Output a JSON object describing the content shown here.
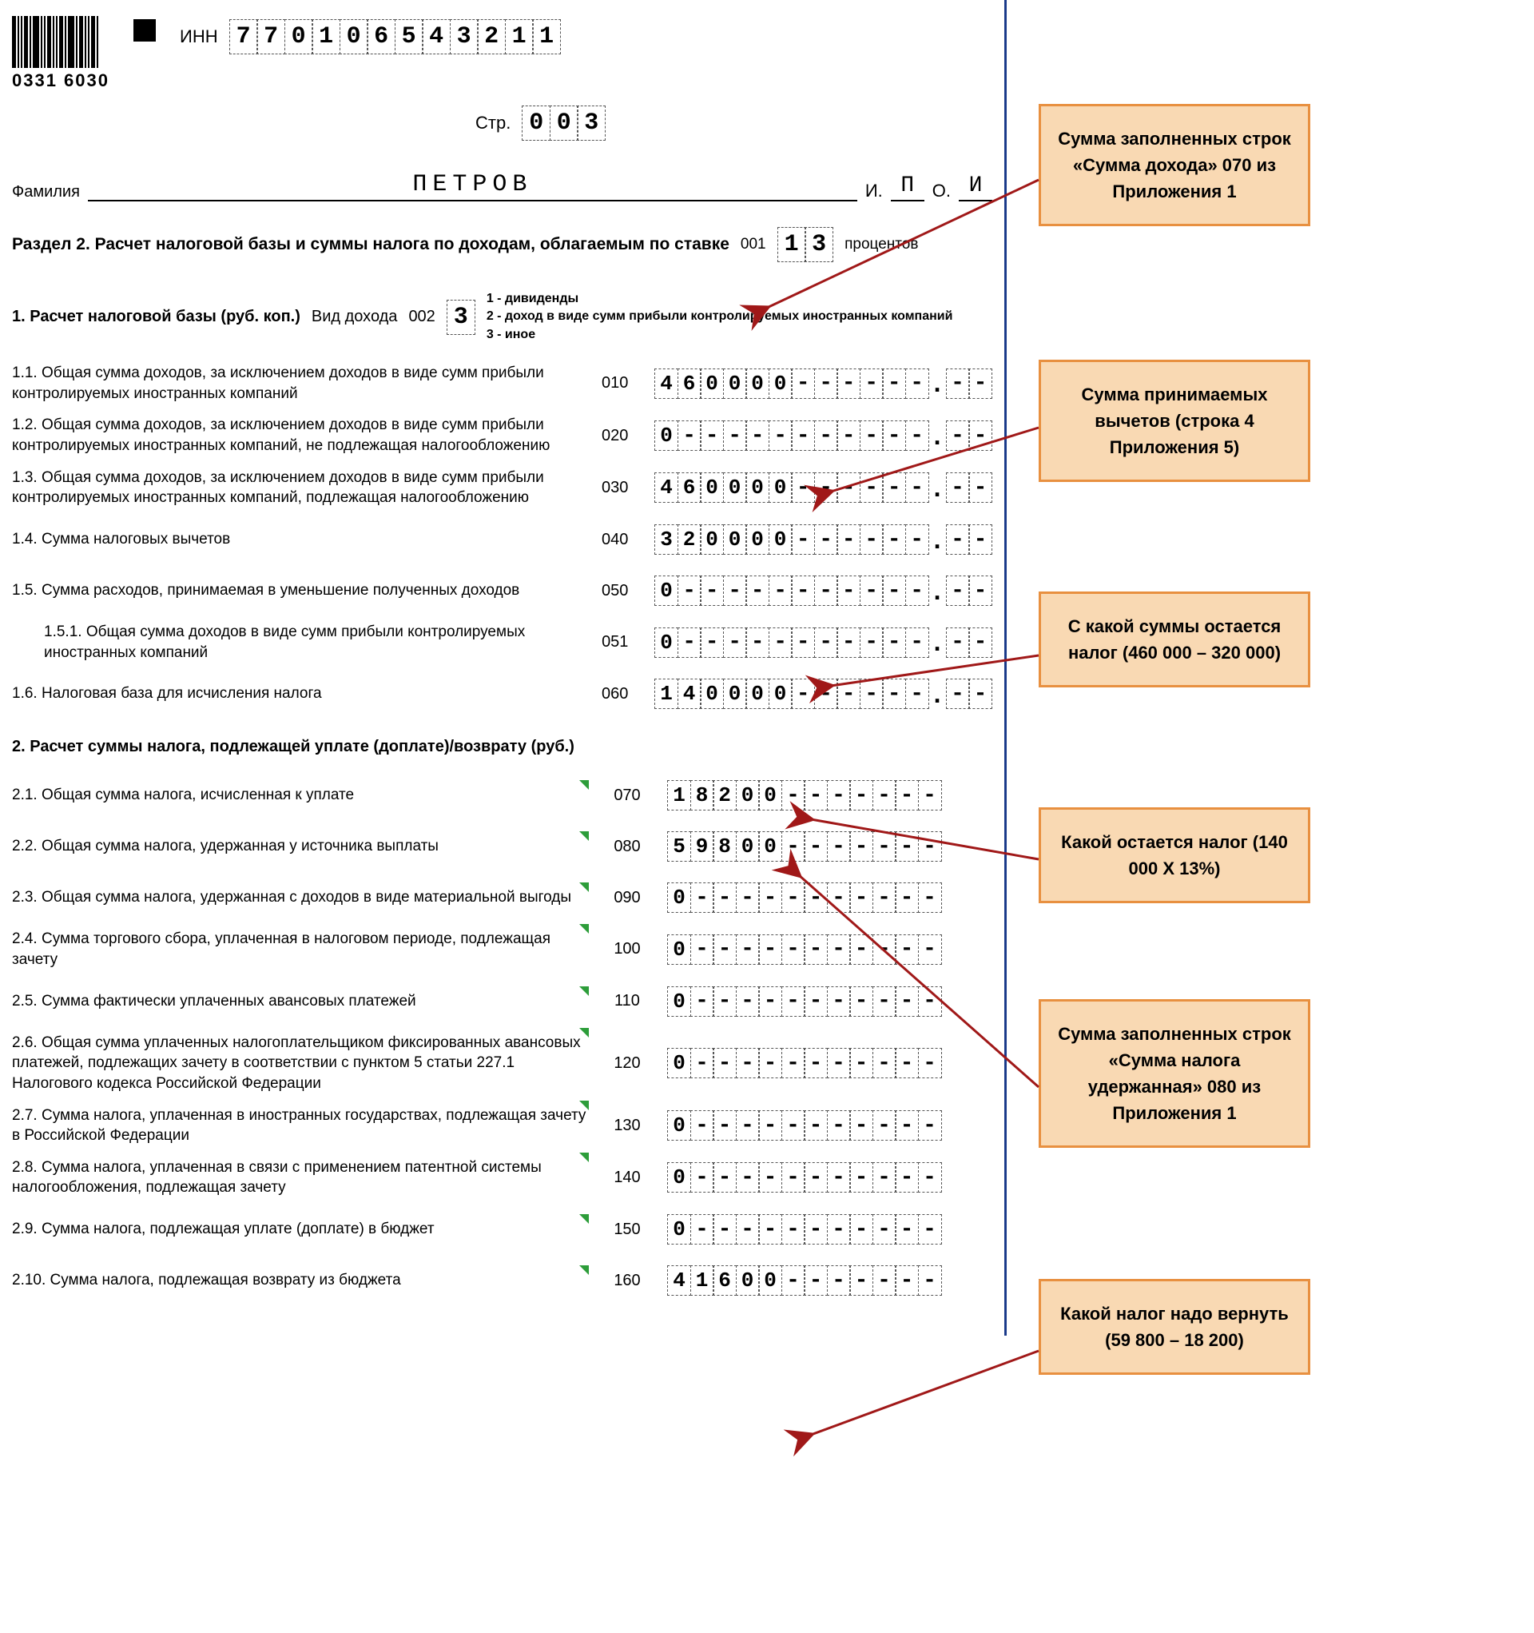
{
  "header": {
    "barcode_text": "0331 6030",
    "inn_label": "ИНН",
    "inn": [
      "7",
      "7",
      "0",
      "1",
      "0",
      "6",
      "5",
      "4",
      "3",
      "2",
      "1",
      "1"
    ],
    "page_label": "Стр.",
    "page": [
      "0",
      "0",
      "3"
    ]
  },
  "name": {
    "surname_label": "Фамилия",
    "surname": "ПЕТРОВ",
    "i_label": "И.",
    "i": "П",
    "o_label": "О.",
    "o": "И"
  },
  "section2": {
    "title": "Раздел 2. Расчет налоговой базы и суммы налога по доходам, облагаемым по ставке",
    "code": "001",
    "rate": [
      "1",
      "3"
    ],
    "rate_suffix": "процентов"
  },
  "sub1": {
    "title": "1. Расчет налоговой базы (руб. коп.)",
    "income_type_label": "Вид дохода",
    "income_type_code": "002",
    "income_type": [
      "3"
    ],
    "notes": [
      "1 - дивиденды",
      "2 - доход в виде сумм прибыли контролируемых иностранных компаний",
      "3 - иное"
    ]
  },
  "sub2": {
    "title": "2. Расчет суммы налога, подлежащей уплате (доплате)/возврату (руб.)"
  },
  "lines": [
    {
      "num": "1.1.",
      "text": "Общая сумма доходов, за исключением доходов в виде сумм прибыли контролируемых иностранных компаний",
      "code": "010",
      "int": [
        "4",
        "6",
        "0",
        "0",
        "0",
        "0",
        "-",
        "-",
        "-",
        "-",
        "-",
        "-"
      ],
      "dec": [
        "-",
        "-"
      ],
      "tri": false
    },
    {
      "num": "1.2.",
      "text": "Общая сумма доходов, за исключением доходов в виде сумм прибыли контролируемых иностранных компаний, не подлежащая налогообложению",
      "code": "020",
      "int": [
        "0",
        "-",
        "-",
        "-",
        "-",
        "-",
        "-",
        "-",
        "-",
        "-",
        "-",
        "-"
      ],
      "dec": [
        "-",
        "-"
      ],
      "tri": false
    },
    {
      "num": "1.3.",
      "text": "Общая сумма доходов, за исключением доходов в виде сумм прибыли контролируемых иностранных компаний, подлежащая налогообложению",
      "code": "030",
      "int": [
        "4",
        "6",
        "0",
        "0",
        "0",
        "0",
        "-",
        "-",
        "-",
        "-",
        "-",
        "-"
      ],
      "dec": [
        "-",
        "-"
      ],
      "tri": false
    },
    {
      "num": "1.4.",
      "text": "Сумма налоговых вычетов",
      "code": "040",
      "int": [
        "3",
        "2",
        "0",
        "0",
        "0",
        "0",
        "-",
        "-",
        "-",
        "-",
        "-",
        "-"
      ],
      "dec": [
        "-",
        "-"
      ],
      "tri": false
    },
    {
      "num": "1.5.",
      "text": "Сумма расходов, принимаемая в уменьшение полученных доходов",
      "code": "050",
      "int": [
        "0",
        "-",
        "-",
        "-",
        "-",
        "-",
        "-",
        "-",
        "-",
        "-",
        "-",
        "-"
      ],
      "dec": [
        "-",
        "-"
      ],
      "tri": false
    },
    {
      "num": "1.5.1.",
      "text": "Общая сумма доходов в виде сумм прибыли контролируемых иностранных компаний",
      "code": "051",
      "int": [
        "0",
        "-",
        "-",
        "-",
        "-",
        "-",
        "-",
        "-",
        "-",
        "-",
        "-",
        "-"
      ],
      "dec": [
        "-",
        "-"
      ],
      "tri": false,
      "indent": true
    },
    {
      "num": "1.6.",
      "text": "Налоговая база для исчисления налога",
      "code": "060",
      "int": [
        "1",
        "4",
        "0",
        "0",
        "0",
        "0",
        "-",
        "-",
        "-",
        "-",
        "-",
        "-"
      ],
      "dec": [
        "-",
        "-"
      ],
      "tri": false
    },
    {
      "num": "2.1.",
      "text": "Общая сумма налога, исчисленная к уплате",
      "code": "070",
      "int": [
        "1",
        "8",
        "2",
        "0",
        "0",
        "-",
        "-",
        "-",
        "-",
        "-",
        "-",
        "-"
      ],
      "dec": null,
      "tri": true
    },
    {
      "num": "2.2.",
      "text": "Общая сумма налога, удержанная у источника выплаты",
      "code": "080",
      "int": [
        "5",
        "9",
        "8",
        "0",
        "0",
        "-",
        "-",
        "-",
        "-",
        "-",
        "-",
        "-"
      ],
      "dec": null,
      "tri": true
    },
    {
      "num": "2.3.",
      "text": "Общая сумма налога, удержанная с доходов в виде материальной выгоды",
      "code": "090",
      "int": [
        "0",
        "-",
        "-",
        "-",
        "-",
        "-",
        "-",
        "-",
        "-",
        "-",
        "-",
        "-"
      ],
      "dec": null,
      "tri": true
    },
    {
      "num": "2.4.",
      "text": "Сумма торгового сбора, уплаченная в налоговом периоде, подлежащая зачету",
      "code": "100",
      "int": [
        "0",
        "-",
        "-",
        "-",
        "-",
        "-",
        "-",
        "-",
        "-",
        "-",
        "-",
        "-"
      ],
      "dec": null,
      "tri": true
    },
    {
      "num": "2.5.",
      "text": "Сумма фактически уплаченных авансовых платежей",
      "code": "110",
      "int": [
        "0",
        "-",
        "-",
        "-",
        "-",
        "-",
        "-",
        "-",
        "-",
        "-",
        "-",
        "-"
      ],
      "dec": null,
      "tri": true
    },
    {
      "num": "2.6.",
      "text": "Общая сумма уплаченных налогоплательщиком фиксированных авансовых платежей, подлежащих зачету в соответствии с пунктом 5 статьи 227.1 Налогового кодекса Российской Федерации",
      "code": "120",
      "int": [
        "0",
        "-",
        "-",
        "-",
        "-",
        "-",
        "-",
        "-",
        "-",
        "-",
        "-",
        "-"
      ],
      "dec": null,
      "tri": true
    },
    {
      "num": "2.7.",
      "text": "Сумма налога, уплаченная в иностранных государствах, подлежащая зачету в Российской Федерации",
      "code": "130",
      "int": [
        "0",
        "-",
        "-",
        "-",
        "-",
        "-",
        "-",
        "-",
        "-",
        "-",
        "-",
        "-"
      ],
      "dec": null,
      "tri": true
    },
    {
      "num": "2.8.",
      "text": "Сумма налога, уплаченная в связи с применением патентной системы налогообложения, подлежащая зачету",
      "code": "140",
      "int": [
        "0",
        "-",
        "-",
        "-",
        "-",
        "-",
        "-",
        "-",
        "-",
        "-",
        "-",
        "-"
      ],
      "dec": null,
      "tri": true
    },
    {
      "num": "2.9.",
      "text": "Сумма налога, подлежащая уплате (доплате) в бюджет",
      "code": "150",
      "int": [
        "0",
        "-",
        "-",
        "-",
        "-",
        "-",
        "-",
        "-",
        "-",
        "-",
        "-",
        "-"
      ],
      "dec": null,
      "tri": true
    },
    {
      "num": "2.10.",
      "text": "Сумма налога, подлежащая возврату из бюджета",
      "code": "160",
      "int": [
        "4",
        "1",
        "6",
        "0",
        "0",
        "-",
        "-",
        "-",
        "-",
        "-",
        "-",
        "-"
      ],
      "dec": null,
      "tri": true
    }
  ],
  "notes": {
    "n1": "Сумма заполненных строк «Сумма дохода» 070 из Приложения 1",
    "n2": "Сумма принимаемых вычетов (строка 4 Приложения 5)",
    "n3": "С какой суммы остается налог (460 000 – 320 000)",
    "n4": "Какой остается налог (140 000 Х 13%)",
    "n5": "Сумма заполненных строк «Сумма налога удержанная» 080 из Приложения 1",
    "n6": "Какой налог надо вернуть (59 800 – 18 200)"
  },
  "colors": {
    "note_bg": "#f9d9b3",
    "note_border": "#e89040",
    "arrow": "#a01818",
    "form_border": "#1a3a8a",
    "tri": "#2d9d3a"
  }
}
